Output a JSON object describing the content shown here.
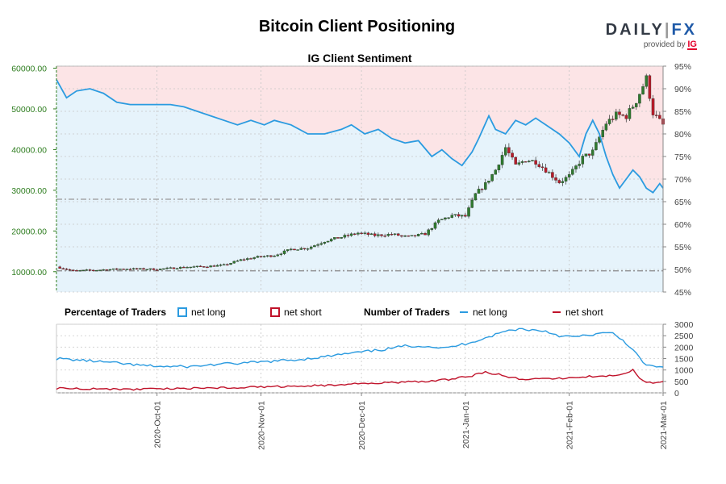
{
  "title": "Bitcoin Client Positioning",
  "subtitle": "IG Client Sentiment",
  "brand": {
    "name_a": "DAILY",
    "name_sep": "|",
    "name_b": "FX",
    "provided_by": "provided by",
    "ig": "IG"
  },
  "legend": {
    "pct_heading": "Percentage of Traders",
    "pct_long": "net long",
    "pct_short": "net short",
    "num_heading": "Number of Traders",
    "num_long": "net long",
    "num_short": "net short"
  },
  "colors": {
    "long": "#2b9be0",
    "short": "#c0122a",
    "long_fill": "#e6f3fb",
    "short_fill": "#fce4e6",
    "up_candle": "#2f7a2f",
    "down_candle": "#b81c2a",
    "left_axis": "#2e7d1f"
  },
  "chart_data": [
    {
      "type": "candlestick",
      "name": "price",
      "axis": "left",
      "y_ticks": [
        "10000.00",
        "20000.00",
        "30000.00",
        "40000.00",
        "50000.00",
        "60000.00"
      ],
      "ylim": [
        5000,
        60500
      ],
      "x_range": [
        "2020-09-01",
        "2021-03-01"
      ],
      "x_ticks": [
        "2020-Oct-01",
        "2020-Nov-01",
        "2020-Dec-01",
        "2021-Jan-01",
        "2021-Feb-01",
        "2021-Mar-01"
      ],
      "x_tick_days": [
        30,
        61,
        91,
        122,
        153,
        181
      ],
      "closes": [
        [
          0,
          11200
        ],
        [
          5,
          10200
        ],
        [
          12,
          10400
        ],
        [
          20,
          10700
        ],
        [
          30,
          10600
        ],
        [
          38,
          11100
        ],
        [
          45,
          11300
        ],
        [
          50,
          11600
        ],
        [
          55,
          12900
        ],
        [
          60,
          13600
        ],
        [
          65,
          14000
        ],
        [
          70,
          15500
        ],
        [
          75,
          15800
        ],
        [
          80,
          17500
        ],
        [
          85,
          18500
        ],
        [
          90,
          19500
        ],
        [
          95,
          18900
        ],
        [
          100,
          19200
        ],
        [
          105,
          18500
        ],
        [
          110,
          19300
        ],
        [
          114,
          22500
        ],
        [
          118,
          23800
        ],
        [
          122,
          23600
        ],
        [
          125,
          29000
        ],
        [
          128,
          31500
        ],
        [
          131,
          35000
        ],
        [
          134,
          40500
        ],
        [
          137,
          36000
        ],
        [
          140,
          37500
        ],
        [
          143,
          37000
        ],
        [
          146,
          35000
        ],
        [
          150,
          32000
        ],
        [
          153,
          33500
        ],
        [
          157,
          38000
        ],
        [
          160,
          39500
        ],
        [
          164,
          46500
        ],
        [
          167,
          48500
        ],
        [
          170,
          48200
        ],
        [
          173,
          52000
        ],
        [
          176,
          57500
        ],
        [
          178,
          49000
        ],
        [
          181,
          46000
        ]
      ],
      "hlines": [
        {
          "value": 10200,
          "color": "#888888"
        },
        {
          "value": 27800,
          "color": "#999999"
        }
      ]
    },
    {
      "type": "area",
      "name": "net long percentage",
      "axis": "right",
      "y_ticks": [
        "45%",
        "50%",
        "55%",
        "60%",
        "65%",
        "70%",
        "75%",
        "80%",
        "85%",
        "90%",
        "95%"
      ],
      "ylim": [
        45,
        95
      ],
      "points": [
        [
          0,
          92
        ],
        [
          3,
          88
        ],
        [
          6,
          89.5
        ],
        [
          10,
          90
        ],
        [
          14,
          89
        ],
        [
          18,
          87
        ],
        [
          22,
          86.5
        ],
        [
          28,
          86.5
        ],
        [
          34,
          86.5
        ],
        [
          38,
          86
        ],
        [
          42,
          85
        ],
        [
          46,
          84
        ],
        [
          50,
          83
        ],
        [
          54,
          82
        ],
        [
          58,
          83
        ],
        [
          62,
          82
        ],
        [
          65,
          83
        ],
        [
          70,
          82
        ],
        [
          75,
          80
        ],
        [
          80,
          80
        ],
        [
          85,
          81
        ],
        [
          88,
          82
        ],
        [
          92,
          80
        ],
        [
          96,
          81
        ],
        [
          100,
          79
        ],
        [
          104,
          78
        ],
        [
          108,
          78.5
        ],
        [
          112,
          75
        ],
        [
          115,
          76.5
        ],
        [
          118,
          74.5
        ],
        [
          121,
          73
        ],
        [
          124,
          76
        ],
        [
          126,
          79
        ],
        [
          129,
          84
        ],
        [
          131,
          81
        ],
        [
          134,
          80
        ],
        [
          137,
          83
        ],
        [
          140,
          82
        ],
        [
          143,
          83.5
        ],
        [
          146,
          82
        ],
        [
          150,
          80
        ],
        [
          153,
          78
        ],
        [
          156,
          75
        ],
        [
          158,
          80
        ],
        [
          160,
          83
        ],
        [
          162,
          80
        ],
        [
          164,
          75
        ],
        [
          166,
          71
        ],
        [
          168,
          68
        ],
        [
          170,
          70
        ],
        [
          172,
          72
        ],
        [
          174,
          70.5
        ],
        [
          176,
          68
        ],
        [
          178,
          67
        ],
        [
          180,
          69
        ],
        [
          181,
          68
        ]
      ]
    },
    {
      "type": "line",
      "name": "net long traders",
      "axis": "lower",
      "y_ticks": [
        "0",
        "500",
        "1000",
        "1500",
        "2000",
        "2500",
        "3000"
      ],
      "ylim": [
        0,
        3000
      ],
      "points": [
        [
          0,
          1500
        ],
        [
          5,
          1450
        ],
        [
          10,
          1400
        ],
        [
          18,
          1300
        ],
        [
          25,
          1200
        ],
        [
          32,
          1150
        ],
        [
          40,
          1150
        ],
        [
          48,
          1250
        ],
        [
          56,
          1300
        ],
        [
          64,
          1380
        ],
        [
          72,
          1450
        ],
        [
          80,
          1580
        ],
        [
          86,
          1700
        ],
        [
          92,
          1800
        ],
        [
          98,
          1900
        ],
        [
          104,
          2050
        ],
        [
          110,
          2050
        ],
        [
          116,
          1950
        ],
        [
          122,
          2150
        ],
        [
          128,
          2400
        ],
        [
          134,
          2700
        ],
        [
          138,
          2800
        ],
        [
          142,
          2750
        ],
        [
          146,
          2700
        ],
        [
          150,
          2500
        ],
        [
          154,
          2450
        ],
        [
          158,
          2500
        ],
        [
          162,
          2600
        ],
        [
          166,
          2600
        ],
        [
          169,
          2300
        ],
        [
          172,
          1900
        ],
        [
          175,
          1300
        ],
        [
          178,
          1150
        ],
        [
          181,
          1100
        ]
      ]
    },
    {
      "type": "line",
      "name": "net short traders",
      "axis": "lower",
      "y_ticks": [
        "0",
        "500",
        "1000",
        "1500",
        "2000",
        "2500",
        "3000"
      ],
      "ylim": [
        0,
        3000
      ],
      "points": [
        [
          0,
          200
        ],
        [
          10,
          180
        ],
        [
          20,
          150
        ],
        [
          30,
          180
        ],
        [
          40,
          200
        ],
        [
          50,
          220
        ],
        [
          60,
          260
        ],
        [
          70,
          280
        ],
        [
          80,
          330
        ],
        [
          90,
          400
        ],
        [
          100,
          450
        ],
        [
          110,
          500
        ],
        [
          118,
          600
        ],
        [
          124,
          750
        ],
        [
          128,
          900
        ],
        [
          132,
          800
        ],
        [
          136,
          650
        ],
        [
          140,
          600
        ],
        [
          144,
          620
        ],
        [
          148,
          600
        ],
        [
          152,
          650
        ],
        [
          156,
          700
        ],
        [
          160,
          720
        ],
        [
          164,
          750
        ],
        [
          168,
          800
        ],
        [
          170,
          850
        ],
        [
          172,
          1000
        ],
        [
          175,
          500
        ],
        [
          178,
          450
        ],
        [
          181,
          500
        ]
      ]
    }
  ]
}
